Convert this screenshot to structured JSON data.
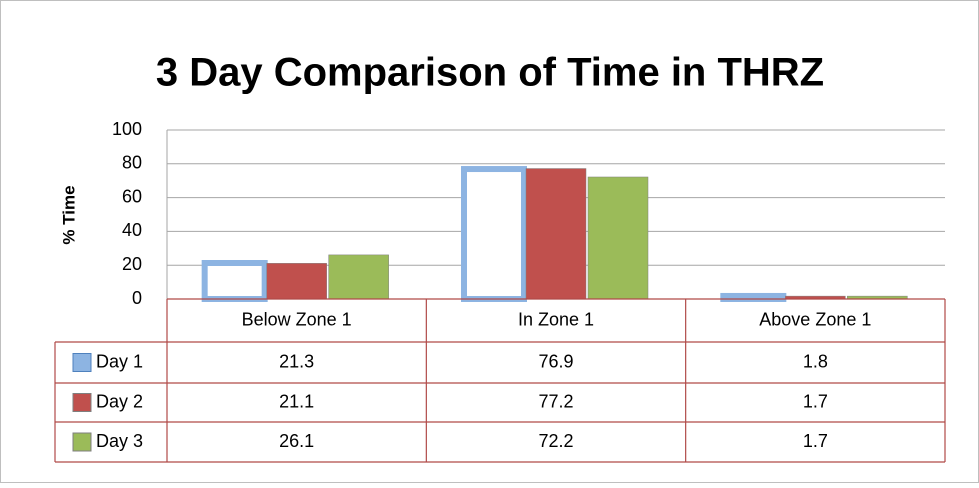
{
  "chart_data": {
    "type": "bar",
    "title": "3 Day Comparison of Time in THRZ",
    "y_label": "% Time",
    "categories": [
      "Below Zone 1",
      "In Zone 1",
      "Above Zone 1"
    ],
    "series": [
      {
        "name": "Day 1",
        "color": "#8db4e2",
        "values": [
          21.3,
          76.9,
          1.8
        ]
      },
      {
        "name": "Day 2",
        "color": "#c0504d",
        "values": [
          21.1,
          77.2,
          1.7
        ]
      },
      {
        "name": "Day 3",
        "color": "#9bbb59",
        "values": [
          26.1,
          72.2,
          1.7
        ]
      }
    ],
    "ylim": [
      0,
      100
    ],
    "yticks": [
      0,
      20,
      40,
      60,
      80,
      100
    ],
    "grid": true,
    "data_table": true
  }
}
